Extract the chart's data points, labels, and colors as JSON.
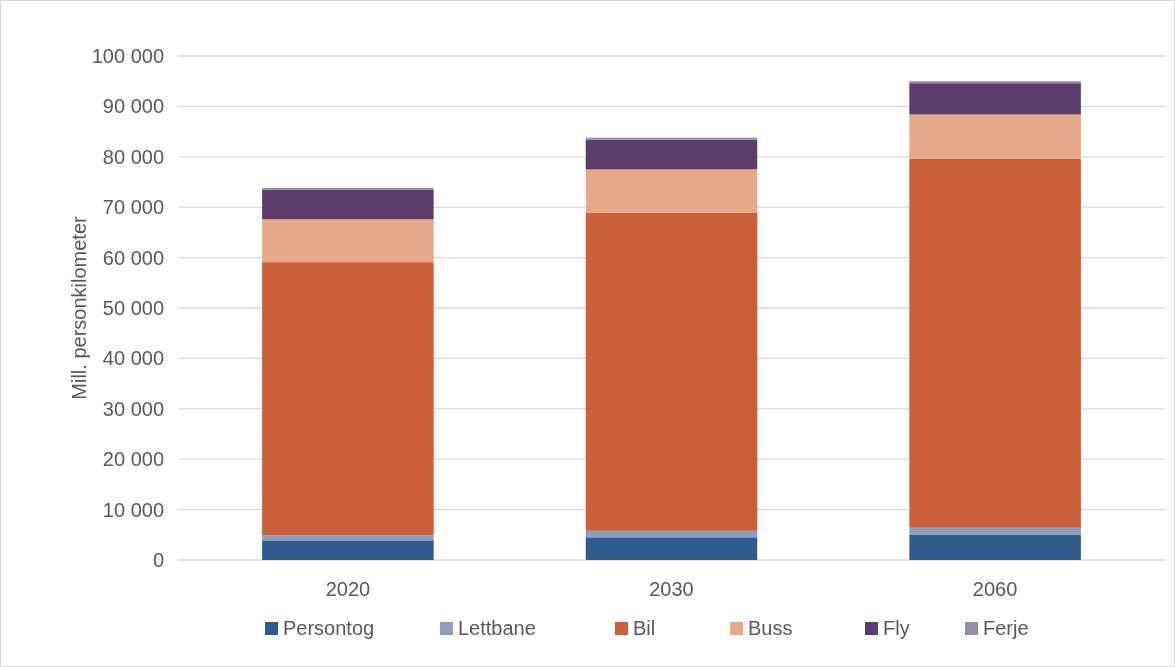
{
  "chart_data": {
    "type": "bar",
    "stacked": true,
    "ylabel": "Mill. personkilometer",
    "categories": [
      "2020",
      "2030",
      "2060"
    ],
    "series": [
      {
        "name": "Persontog",
        "color": "#2e5a8c",
        "values": [
          3900,
          4500,
          5000
        ]
      },
      {
        "name": "Lettbane",
        "color": "#8e9dbe",
        "values": [
          1000,
          1300,
          1400
        ]
      },
      {
        "name": "Bil",
        "color": "#cb5f3a",
        "values": [
          54200,
          63100,
          73200
        ]
      },
      {
        "name": "Buss",
        "color": "#e5a98a",
        "values": [
          8500,
          8600,
          8800
        ]
      },
      {
        "name": "Fly",
        "color": "#5a3d6c",
        "values": [
          5800,
          5900,
          6200
        ]
      },
      {
        "name": "Ferje",
        "color": "#9d8aa6",
        "values": [
          400,
          400,
          400
        ]
      }
    ],
    "ylim": [
      0,
      100000
    ],
    "yticks": [
      {
        "value": 0,
        "label": "0"
      },
      {
        "value": 10000,
        "label": "10 000"
      },
      {
        "value": 20000,
        "label": "20 000"
      },
      {
        "value": 30000,
        "label": "30 000"
      },
      {
        "value": 40000,
        "label": "40 000"
      },
      {
        "value": 50000,
        "label": "50 000"
      },
      {
        "value": 60000,
        "label": "60 000"
      },
      {
        "value": 70000,
        "label": "70 000"
      },
      {
        "value": 80000,
        "label": "80 000"
      },
      {
        "value": 90000,
        "label": "90 000"
      },
      {
        "value": 100000,
        "label": "100 000"
      }
    ],
    "grid": "y",
    "legend": "bottom"
  }
}
